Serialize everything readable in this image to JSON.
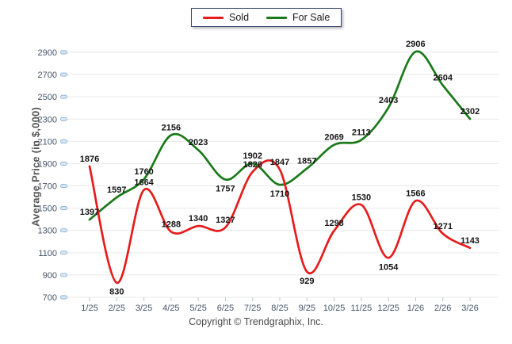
{
  "footer": {
    "copyright": "Copyright © Trendgraphix, Inc."
  },
  "chart_data": {
    "type": "line",
    "title": "",
    "xlabel": "",
    "ylabel": "Average Price (in $,000)",
    "categories": [
      "1/25",
      "2/25",
      "3/25",
      "4/25",
      "5/25",
      "6/25",
      "7/25",
      "8/25",
      "9/25",
      "10/25",
      "11/25",
      "12/25",
      "1/26",
      "2/26",
      "3/26"
    ],
    "series": [
      {
        "name": "Sold",
        "color": "#e61c1c",
        "values": [
          1876,
          830,
          1664,
          1288,
          1340,
          1327,
          1826,
          1847,
          929,
          1298,
          1530,
          1054,
          1566,
          1271,
          1143
        ]
      },
      {
        "name": "For Sale",
        "color": "#1a7a1a",
        "values": [
          1397,
          1597,
          1760,
          2156,
          2023,
          1757,
          1902,
          1710,
          1857,
          2069,
          2113,
          2403,
          2906,
          2604,
          2302
        ]
      }
    ],
    "ylim": [
      700,
      2900
    ],
    "yticks": [
      700,
      900,
      1100,
      1300,
      1500,
      1700,
      1900,
      2100,
      2300,
      2500,
      2700,
      2900
    ],
    "grid": "horizontal",
    "gridline_color": "#e9e9e9",
    "tick_mark_color": "#b9c6d3",
    "data_labels": true,
    "curve": "smooth",
    "legend_position": "top-center"
  }
}
